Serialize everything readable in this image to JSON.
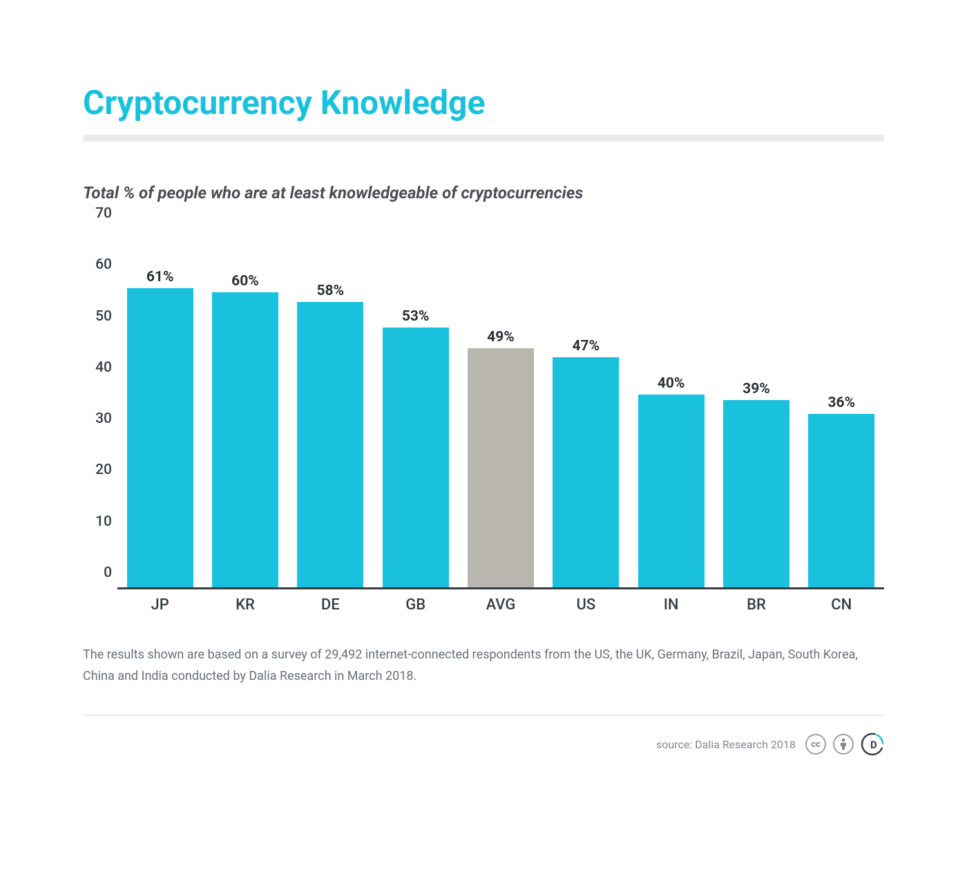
{
  "title": "Cryptocurrency Knowledge",
  "subtitle": "Total % of people who are at least knowledgeable of cryptocurrencies",
  "chart": {
    "type": "bar",
    "ylim": [
      0,
      70
    ],
    "yticks": [
      0,
      10,
      20,
      30,
      40,
      50,
      60,
      70
    ],
    "categories": [
      "JP",
      "KR",
      "DE",
      "GB",
      "AVG",
      "US",
      "IN",
      "BR",
      "CN"
    ],
    "values": [
      61,
      60,
      58,
      53,
      49,
      47,
      40,
      39,
      36
    ],
    "value_labels": [
      "61%",
      "60%",
      "58%",
      "53%",
      "49%",
      "47%",
      "40%",
      "39%",
      "36%"
    ],
    "bar_colors": [
      "#1ac1dd",
      "#1ac1dd",
      "#1ac1dd",
      "#1ac1dd",
      "#b9b6b0",
      "#1ac1dd",
      "#1ac1dd",
      "#1ac1dd",
      "#1ac1dd"
    ],
    "bar_height_pct": [
      83.8,
      82.5,
      79.8,
      72.8,
      67,
      64.5,
      54,
      52.5,
      48.5
    ],
    "bar_width": 0.78,
    "axis_color": "#353d43",
    "tick_fontsize": 21,
    "tick_color": "#353d43",
    "label_fontsize": 21,
    "label_color": "#2b3136",
    "x_label_fontsize": 22
  },
  "colors": {
    "title": "#1ac1dd",
    "subtitle": "#4a4f54",
    "rule": "#ebebeb",
    "caption": "#67707a",
    "footer_rule": "#ebebeb",
    "source_text": "#808890",
    "badge_border": "#9aa0a6",
    "badge_text": "#808890",
    "logo_accent": "#1ac1dd",
    "logo_dark": "#353d43"
  },
  "caption": "The results shown are based on a survey of 29,492 internet-connected respondents from the US, the UK, Germany, Brazil, Japan, South Korea, China and India conducted by Dalia Research in March 2018.",
  "source": "source: Dalia Research 2018",
  "badges": {
    "cc": "cc"
  },
  "typography": {
    "title_fontsize": 48,
    "title_weight": 700,
    "subtitle_fontsize": 24,
    "caption_fontsize": 18,
    "source_fontsize": 16
  }
}
